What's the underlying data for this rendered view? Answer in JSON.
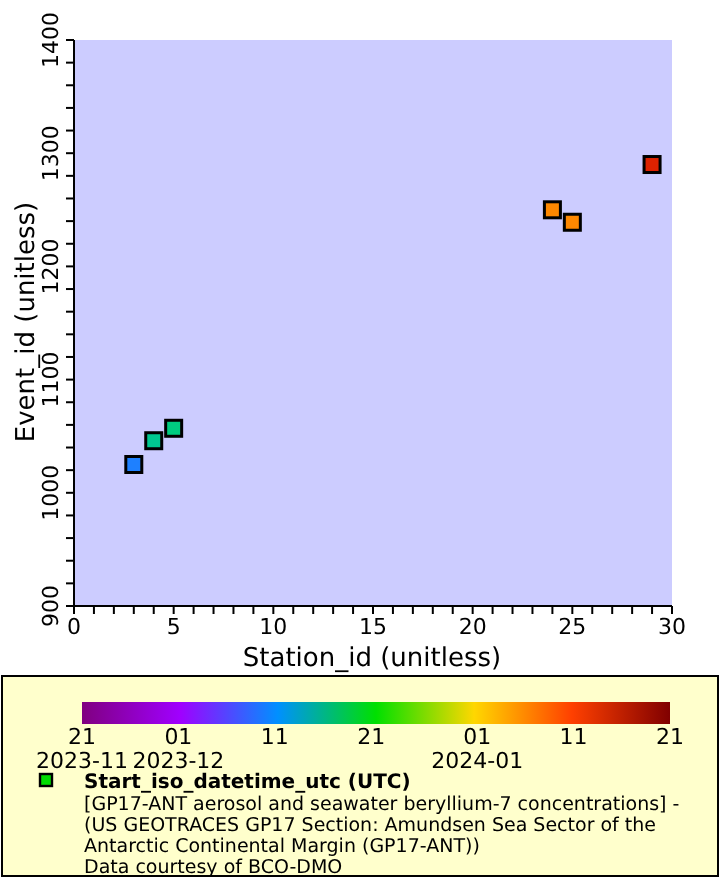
{
  "chart_data": {
    "type": "scatter",
    "xlabel": "Station_id (unitless)",
    "ylabel": "Event_id (unitless)",
    "clabel": "Start_iso_datetime_utc (UTC)",
    "x": [
      3,
      4,
      5,
      24,
      25,
      29
    ],
    "values": [
      1025,
      1046,
      1057,
      1250,
      1239,
      1290
    ],
    "colors": [
      "#1e80ff",
      "#00c890",
      "#00cc80",
      "#ff8800",
      "#ff8800",
      "#dd2200"
    ],
    "clim": [
      "2023-11-21",
      "2024-01-21"
    ],
    "cticks": [
      {
        "value": "2023-11-21",
        "label": "21\n2023-11"
      },
      {
        "value": "2023-12-01",
        "label": "01\n2023-12"
      },
      {
        "value": "2023-12-11",
        "label": "11"
      },
      {
        "value": "2023-12-21",
        "label": "21"
      },
      {
        "value": "2024-01-01",
        "label": "01\n2024-01"
      },
      {
        "value": "2024-01-11",
        "label": "11"
      },
      {
        "value": "2024-01-21",
        "label": "21"
      }
    ],
    "marker": "square",
    "grid": false,
    "xlim": [
      0,
      30
    ],
    "ylim": [
      900,
      1400
    ],
    "xticks": [
      0,
      {
        "value": 1,
        "label": null
      },
      {
        "value": 2,
        "label": null
      },
      {
        "value": 3,
        "label": null
      },
      {
        "value": 4,
        "label": null
      },
      5,
      {
        "value": 6,
        "label": null
      },
      {
        "value": 7,
        "label": null
      },
      {
        "value": 8,
        "label": null
      },
      {
        "value": 9,
        "label": null
      },
      10,
      {
        "value": 11,
        "label": null
      },
      {
        "value": 12,
        "label": null
      },
      {
        "value": 13,
        "label": null
      },
      {
        "value": 14,
        "label": null
      },
      15,
      {
        "value": 16,
        "label": null
      },
      {
        "value": 17,
        "label": null
      },
      {
        "value": 18,
        "label": null
      },
      {
        "value": 19,
        "label": null
      },
      20,
      {
        "value": 21,
        "label": null
      },
      {
        "value": 22,
        "label": null
      },
      {
        "value": 23,
        "label": null
      },
      {
        "value": 24,
        "label": null
      },
      25,
      {
        "value": 26,
        "label": null
      },
      {
        "value": 27,
        "label": null
      },
      {
        "value": 28,
        "label": null
      },
      {
        "value": 29,
        "label": null
      },
      30
    ],
    "yticks": [
      900,
      {
        "value": 920,
        "label": null
      },
      {
        "value": 940,
        "label": null
      },
      {
        "value": 960,
        "label": null
      },
      {
        "value": 980,
        "label": null
      },
      1000,
      {
        "value": 1020,
        "label": null
      },
      {
        "value": 1040,
        "label": null
      },
      {
        "value": 1060,
        "label": null
      },
      {
        "value": 1080,
        "label": null
      },
      1100,
      {
        "value": 1120,
        "label": null
      },
      {
        "value": 1140,
        "label": null
      },
      {
        "value": 1160,
        "label": null
      },
      {
        "value": 1180,
        "label": null
      },
      1200,
      {
        "value": 1220,
        "label": null
      },
      {
        "value": 1240,
        "label": null
      },
      {
        "value": 1260,
        "label": null
      },
      {
        "value": 1280,
        "label": null
      },
      1300,
      {
        "value": 1320,
        "label": null
      },
      {
        "value": 1340,
        "label": null
      },
      {
        "value": 1360,
        "label": null
      },
      {
        "value": 1380,
        "label": null
      },
      1400
    ],
    "annotations": [
      "[GP17-ANT aerosol and seawater beryllium-7 concentrations] -",
      "(US GEOTRACES GP17 Section: Amundsen Sea Sector of the",
      "Antarctic Continental Margin (GP17-ANT))",
      "Data courtesy of BCO-DMO"
    ]
  }
}
